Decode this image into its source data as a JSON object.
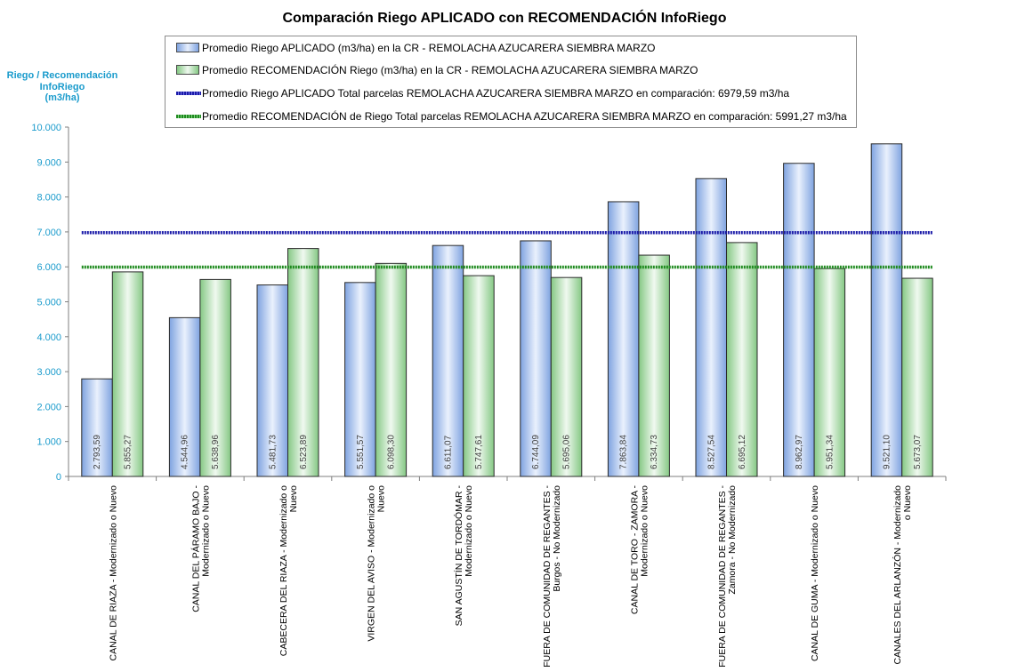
{
  "chart_data": {
    "type": "bar",
    "title": "Comparación Riego APLICADO con RECOMENDACIÓN InfoRiego",
    "ylabel": "Riego / Recomendación\nInfoRiego\n(m3/ha)",
    "ylim": [
      0,
      10000
    ],
    "yticks": [
      "0",
      "1.000",
      "2.000",
      "3.000",
      "4.000",
      "5.000",
      "6.000",
      "7.000",
      "8.000",
      "9.000",
      "10.000"
    ],
    "grid": false,
    "legend_position": "top",
    "categories": [
      "CANAL DE RIAZA - Modernizado o Nuevo",
      "CANAL DEL PÁRAMO BAJO - Modernizado o Nuevo",
      "CABECERA DEL RIAZA - Modernizado o Nuevo",
      "VIRGEN DEL AVISO - Modernizado o Nuevo",
      "SAN AGUSTÍN DE TORDÓMAR - Modernizado o Nuevo",
      "FUERA DE COMUNIDAD DE REGANTES - Burgos - No Modernizado",
      "CANAL DE TORO - ZAMORA - Modernizado o Nuevo",
      "FUERA DE COMUNIDAD DE REGANTES - Zamora - No Modernizado",
      "CANAL DE GUMA - Modernizado o Nuevo",
      "CANALES DEL ARLANZÓN - Modernizado o Nuevo"
    ],
    "category_lines": [
      [
        "CANAL DE RIAZA - Modernizado o Nuevo"
      ],
      [
        "CANAL DEL PÁRAMO BAJO -",
        "Modernizado o Nuevo"
      ],
      [
        "CABECERA DEL RIAZA - Modernizado o",
        "Nuevo"
      ],
      [
        "VIRGEN DEL AVISO - Modernizado o",
        "Nuevo"
      ],
      [
        "SAN AGUSTÍN DE TORDÓMAR -",
        "Modernizado o Nuevo"
      ],
      [
        "FUERA DE COMUNIDAD DE REGANTES -",
        "Burgos - No Modernizado"
      ],
      [
        "CANAL DE TORO - ZAMORA -",
        "Modernizado o Nuevo"
      ],
      [
        "FUERA DE COMUNIDAD DE REGANTES -",
        "Zamora - No Modernizado"
      ],
      [
        "CANAL DE GUMA - Modernizado o Nuevo"
      ],
      [
        "CANALES DEL ARLANZÓN - Modernizado",
        "o Nuevo"
      ]
    ],
    "series": [
      {
        "name": "Promedio Riego APLICADO (m3/ha) en la CR - REMOLACHA AZUCARERA SIEMBRA MARZO",
        "color": "#8eb0e8",
        "values": [
          2793.59,
          4544.96,
          5481.73,
          5551.57,
          6611.07,
          6744.09,
          7863.84,
          8527.54,
          8962.97,
          9521.1
        ],
        "labels": [
          "2.793,59",
          "4.544,96",
          "5.481,73",
          "5.551,57",
          "6.611,07",
          "6.744,09",
          "7.863,84",
          "8.527,54",
          "8.962,97",
          "9.521,10"
        ]
      },
      {
        "name": "Promedio RECOMENDACIÓN Riego (m3/ha) en la CR - REMOLACHA AZUCARERA SIEMBRA MARZO",
        "color": "#9cd49a",
        "values": [
          5855.27,
          5638.96,
          6523.89,
          6098.3,
          5747.61,
          5695.06,
          6334.73,
          6695.12,
          5951.34,
          5673.07
        ],
        "labels": [
          "5.855,27",
          "5.638,96",
          "6.523,89",
          "6.098,30",
          "5.747,61",
          "5.695,06",
          "6.334,73",
          "6.695,12",
          "5.951,34",
          "5.673,07"
        ]
      }
    ],
    "reference_lines": [
      {
        "name": "Promedio Riego APLICADO Total parcelas REMOLACHA AZUCARERA SIEMBRA MARZO en comparación: 6979,59 m3/ha",
        "value": 6979.59,
        "color": "#1a1aa8"
      },
      {
        "name": "Promedio RECOMENDACIÓN de Riego Total parcelas REMOLACHA AZUCARERA SIEMBRA MARZO en comparación: 5991,27 m3/ha",
        "value": 5991.27,
        "color": "#1e8a1e"
      }
    ]
  }
}
